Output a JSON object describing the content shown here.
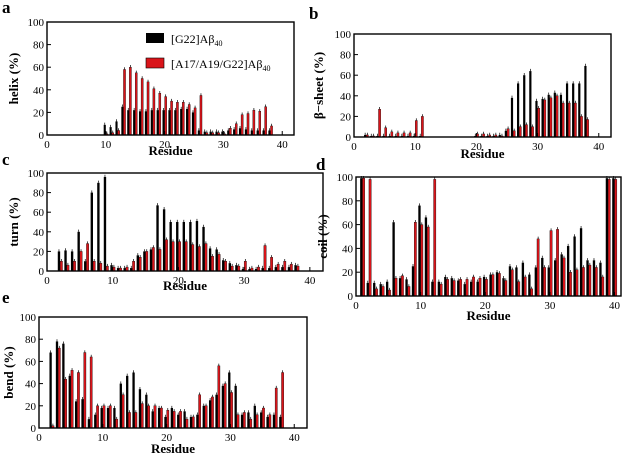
{
  "figure": {
    "legend": {
      "series1": "[G22]Aβ",
      "series1_sub": "40",
      "series2": "[A17/A19/G22]Aβ",
      "series2_sub": "40"
    },
    "colors": {
      "series1": "#000000",
      "series2": "#d9141a"
    }
  },
  "chart_data": [
    {
      "id": "a",
      "letter": "a",
      "type": "bar",
      "ylabel": "helix (%)",
      "xlabel": "Residue",
      "xlim": [
        0,
        42
      ],
      "ylim": [
        0,
        100
      ],
      "xticks": [
        0,
        10,
        20,
        30,
        40
      ],
      "yticks": [
        0,
        20,
        40,
        60,
        80,
        100
      ],
      "x": [
        10,
        11,
        12,
        13,
        14,
        15,
        16,
        17,
        18,
        19,
        20,
        21,
        22,
        23,
        24,
        25,
        26,
        27,
        28,
        29,
        30,
        31,
        32,
        33,
        34,
        35,
        36,
        37,
        38
      ],
      "series": [
        {
          "name": "[G22]Aβ40",
          "values": [
            9,
            7,
            12,
            25,
            22,
            22,
            21,
            21,
            22,
            22,
            22,
            22,
            22,
            23,
            23,
            20,
            4,
            3,
            3,
            3,
            3,
            4,
            5,
            6,
            5,
            4,
            4,
            4,
            4
          ]
        },
        {
          "name": "[A17/A19/G22]Aβ40",
          "values": [
            1,
            2,
            4,
            58,
            60,
            55,
            50,
            47,
            41,
            37,
            34,
            30,
            29,
            29,
            27,
            24,
            35,
            2,
            2,
            2,
            1,
            6,
            10,
            18,
            19,
            22,
            21,
            25,
            8
          ]
        }
      ]
    },
    {
      "id": "b",
      "letter": "b",
      "type": "bar",
      "ylabel": "β−sheet (%)",
      "xlabel": "Residue",
      "xlim": [
        0,
        42
      ],
      "ylim": [
        0,
        100
      ],
      "xticks": [
        0,
        10,
        20,
        30,
        40
      ],
      "yticks": [
        0,
        20,
        40,
        60,
        80,
        100
      ],
      "x": [
        2,
        3,
        4,
        5,
        6,
        7,
        8,
        9,
        10,
        11,
        20,
        21,
        22,
        23,
        24,
        25,
        26,
        27,
        28,
        29,
        30,
        31,
        32,
        33,
        34,
        35,
        36,
        37,
        38
      ],
      "series": [
        {
          "name": "[G22]Aβ40",
          "values": [
            2,
            1,
            1,
            1,
            1,
            1,
            1,
            1,
            1,
            1,
            1,
            1,
            1,
            1,
            2,
            6,
            38,
            52,
            60,
            64,
            35,
            37,
            41,
            43,
            41,
            52,
            52,
            52,
            69
          ]
        },
        {
          "name": "[A17/A19/G22]Aβ40",
          "values": [
            2,
            1,
            27,
            9,
            5,
            4,
            4,
            4,
            16,
            20,
            3,
            3,
            2,
            2,
            1,
            8,
            6,
            10,
            12,
            10,
            28,
            36,
            38,
            40,
            33,
            33,
            33,
            20,
            17
          ]
        }
      ]
    },
    {
      "id": "c",
      "letter": "c",
      "type": "bar",
      "ylabel": "turn (%)",
      "xlabel": "Residue",
      "xlim": [
        0,
        42
      ],
      "ylim": [
        0,
        100
      ],
      "xticks": [
        0,
        10,
        20,
        30,
        40
      ],
      "yticks": [
        0,
        20,
        40,
        60,
        80,
        100
      ],
      "x": [
        2,
        3,
        4,
        5,
        6,
        7,
        8,
        9,
        10,
        11,
        12,
        13,
        14,
        15,
        16,
        17,
        18,
        19,
        20,
        21,
        22,
        23,
        24,
        25,
        26,
        27,
        28,
        29,
        30,
        31,
        32,
        33,
        34,
        35,
        36,
        37,
        38
      ],
      "series": [
        {
          "name": "[G22]Aβ40",
          "values": [
            20,
            21,
            20,
            40,
            10,
            80,
            90,
            96,
            6,
            3,
            3,
            3,
            16,
            20,
            22,
            67,
            63,
            50,
            50,
            50,
            50,
            51,
            45,
            23,
            22,
            11,
            8,
            6,
            2,
            2,
            2,
            3,
            3,
            4,
            4,
            4,
            6
          ]
        },
        {
          "name": "[A17/A19/G22]Aβ40",
          "values": [
            10,
            6,
            10,
            20,
            28,
            10,
            8,
            5,
            4,
            3,
            4,
            10,
            14,
            20,
            24,
            22,
            32,
            30,
            30,
            30,
            27,
            25,
            28,
            15,
            17,
            10,
            5,
            5,
            10,
            3,
            4,
            26,
            14,
            7,
            10,
            7,
            5
          ]
        }
      ]
    },
    {
      "id": "d",
      "letter": "d",
      "type": "bar",
      "ylabel": "coil (%)",
      "xlabel": "Residue",
      "xlim": [
        0,
        41
      ],
      "ylim": [
        0,
        100
      ],
      "xticks": [
        0,
        10,
        20,
        30,
        40
      ],
      "yticks": [
        0,
        20,
        40,
        60,
        80,
        100
      ],
      "x": [
        1,
        2,
        3,
        4,
        5,
        6,
        7,
        8,
        9,
        10,
        11,
        12,
        13,
        14,
        15,
        16,
        17,
        18,
        19,
        20,
        21,
        22,
        23,
        24,
        25,
        26,
        27,
        28,
        29,
        30,
        31,
        32,
        33,
        34,
        35,
        36,
        37,
        38,
        39,
        40
      ],
      "series": [
        {
          "name": "[G22]Aβ40",
          "values": [
            99,
            11,
            11,
            10,
            12,
            62,
            15,
            14,
            25,
            76,
            66,
            12,
            12,
            16,
            15,
            13,
            10,
            12,
            12,
            16,
            18,
            20,
            15,
            25,
            24,
            28,
            18,
            24,
            32,
            24,
            30,
            35,
            42,
            50,
            57,
            30,
            30,
            28,
            99,
            99
          ]
        },
        {
          "name": "[A17/A19/G22]Aβ40",
          "values": [
            99,
            98,
            6,
            8,
            5,
            15,
            17,
            8,
            62,
            60,
            58,
            98,
            10,
            14,
            13,
            14,
            14,
            16,
            15,
            14,
            18,
            19,
            13,
            22,
            12,
            16,
            6,
            48,
            24,
            55,
            56,
            32,
            20,
            22,
            24,
            26,
            24,
            16,
            98,
            98
          ]
        }
      ]
    },
    {
      "id": "e",
      "letter": "e",
      "type": "bar",
      "ylabel": "bend (%)",
      "xlabel": "Residue",
      "xlim": [
        0,
        42
      ],
      "ylim": [
        0,
        100
      ],
      "xticks": [
        0,
        10,
        20,
        30,
        40
      ],
      "yticks": [
        0,
        20,
        40,
        60,
        80,
        100
      ],
      "x": [
        2,
        3,
        4,
        5,
        6,
        7,
        8,
        9,
        10,
        11,
        12,
        13,
        14,
        15,
        16,
        17,
        18,
        19,
        20,
        21,
        22,
        23,
        24,
        25,
        26,
        27,
        28,
        29,
        30,
        31,
        32,
        33,
        34,
        35,
        36,
        37,
        38
      ],
      "series": [
        {
          "name": "[G22]Aβ40",
          "values": [
            68,
            78,
            76,
            47,
            24,
            26,
            8,
            12,
            18,
            18,
            18,
            40,
            47,
            50,
            35,
            30,
            15,
            18,
            10,
            18,
            12,
            15,
            10,
            12,
            20,
            25,
            30,
            38,
            50,
            38,
            12,
            14,
            20,
            14,
            10,
            12,
            10
          ]
        },
        {
          "name": "[A17/A19/G22]Aβ40",
          "values": [
            2,
            72,
            44,
            52,
            50,
            68,
            64,
            20,
            20,
            20,
            8,
            30,
            14,
            14,
            22,
            20,
            20,
            18,
            16,
            15,
            15,
            8,
            10,
            30,
            20,
            28,
            56,
            40,
            32,
            12,
            14,
            8,
            12,
            18,
            12,
            36,
            50
          ]
        }
      ]
    }
  ]
}
